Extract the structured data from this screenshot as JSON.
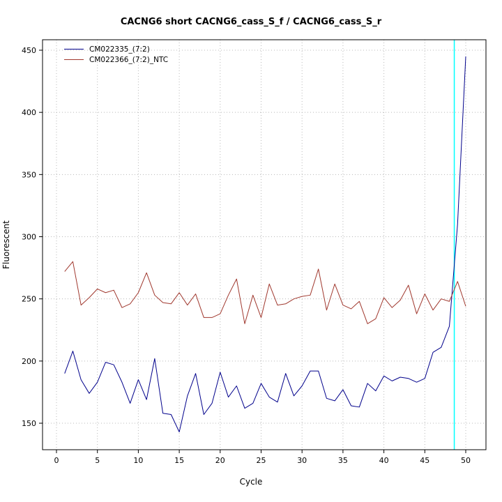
{
  "chart_data": {
    "type": "line",
    "title": "CACNG6 short CACNG6_cass_S_f / CACNG6_cass_S_r",
    "xlabel": "Cycle",
    "ylabel": "Fluorescent",
    "xlim": [
      0,
      50
    ],
    "ylim": [
      150,
      450
    ],
    "xticks": [
      0,
      5,
      10,
      15,
      20,
      25,
      30,
      35,
      40,
      45,
      50
    ],
    "yticks": [
      150,
      200,
      250,
      300,
      350,
      400,
      450
    ],
    "grid": true,
    "grid_color": "#b8b8b8",
    "legend_position": "top-left",
    "threshold_line": {
      "x": 48.6,
      "color": "#00ffff"
    },
    "x": [
      1,
      2,
      3,
      4,
      5,
      6,
      7,
      8,
      9,
      10,
      11,
      12,
      13,
      14,
      15,
      16,
      17,
      18,
      19,
      20,
      21,
      22,
      23,
      24,
      25,
      26,
      27,
      28,
      29,
      30,
      31,
      32,
      33,
      34,
      35,
      36,
      37,
      38,
      39,
      40,
      41,
      42,
      43,
      44,
      45,
      46,
      47,
      48,
      49,
      50
    ],
    "series": [
      {
        "name": "CM022335_(7:2)",
        "color": "#00008b",
        "values": [
          190,
          208,
          185,
          174,
          183,
          199,
          197,
          183,
          166,
          185,
          169,
          202,
          158,
          157,
          143,
          172,
          190,
          157,
          166,
          191,
          171,
          180,
          162,
          166,
          182,
          171,
          167,
          190,
          172,
          180,
          192,
          192,
          170,
          168,
          177,
          164,
          163,
          182,
          176,
          188,
          184,
          187,
          186,
          183,
          186,
          207,
          211,
          228,
          310,
          445
        ]
      },
      {
        "name": "CM022366_(7:2)_NTC",
        "color": "#a0382e",
        "values": [
          272,
          280,
          245,
          251,
          258,
          255,
          257,
          243,
          246,
          255,
          271,
          253,
          247,
          246,
          255,
          245,
          254,
          235,
          235,
          238,
          253,
          266,
          230,
          253,
          235,
          262,
          245,
          246,
          250,
          252,
          253,
          274,
          241,
          262,
          245,
          242,
          248,
          230,
          234,
          251,
          243,
          249,
          261,
          238,
          254,
          241,
          250,
          248,
          264,
          244
        ]
      }
    ]
  }
}
